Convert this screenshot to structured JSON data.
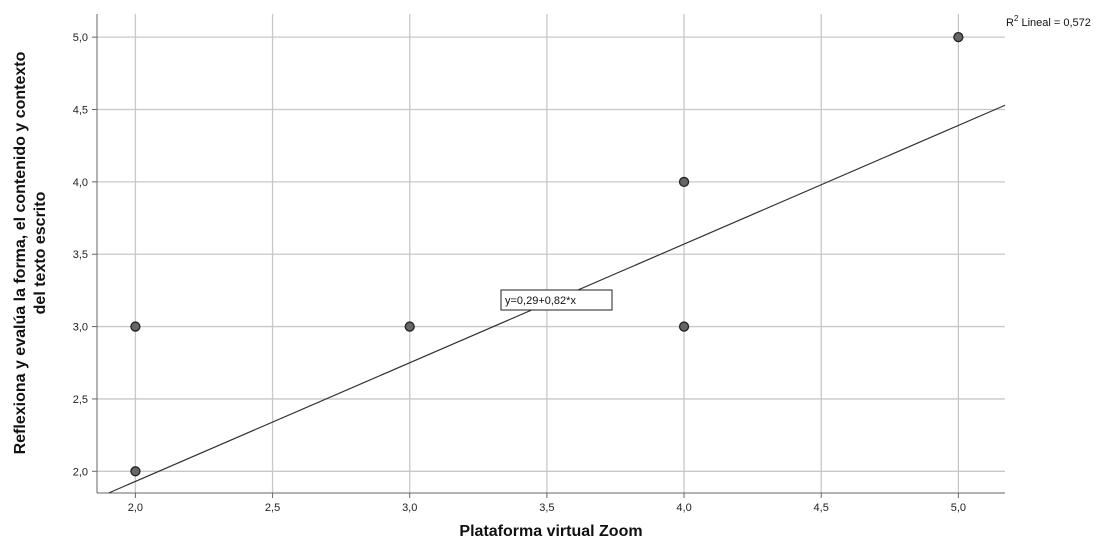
{
  "chart_data": {
    "type": "scatter",
    "title": "",
    "xlabel": "Plataforma virtual Zoom",
    "ylabel_lines": [
      "Reflexiona y evalúa la forma, el contenido y contexto",
      "del texto escrito"
    ],
    "xlim": [
      1.86,
      5.17
    ],
    "ylim": [
      1.85,
      5.16
    ],
    "x_ticks": [
      2.0,
      2.5,
      3.0,
      3.5,
      4.0,
      4.5,
      5.0
    ],
    "x_tick_labels": [
      "2,0",
      "2,5",
      "3,0",
      "3,5",
      "4,0",
      "4,5",
      "5,0"
    ],
    "y_ticks": [
      2.0,
      2.5,
      3.0,
      3.5,
      4.0,
      4.5,
      5.0
    ],
    "y_tick_labels": [
      "2,0",
      "2,5",
      "3,0",
      "3,5",
      "4,0",
      "4,5",
      "5,0"
    ],
    "grid": true,
    "points": [
      {
        "x": 2.0,
        "y": 3.0
      },
      {
        "x": 2.0,
        "y": 2.0
      },
      {
        "x": 3.0,
        "y": 3.0
      },
      {
        "x": 4.0,
        "y": 4.0
      },
      {
        "x": 4.0,
        "y": 3.0
      },
      {
        "x": 5.0,
        "y": 5.0
      }
    ],
    "fit_line": {
      "intercept": 0.29,
      "slope": 0.82
    },
    "equation_label": "y=0,29+0,82*x",
    "r2_label": {
      "prefix": "R",
      "superscript": "2",
      "text": " Lineal = 0,572"
    },
    "colors": {
      "point_fill": "#666666",
      "point_stroke": "#222222",
      "line": "#333333",
      "grid": "#c8c8c8",
      "axis": "#666666"
    }
  }
}
